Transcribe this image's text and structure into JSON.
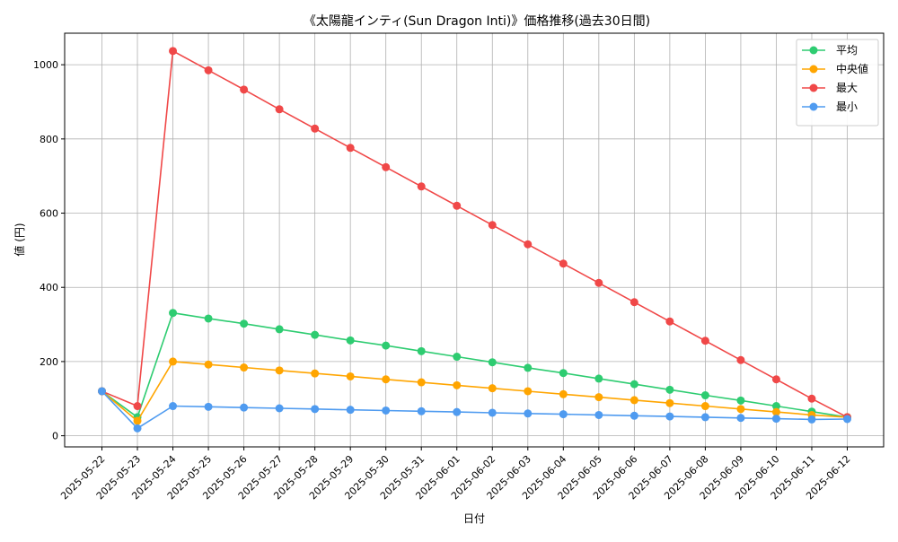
{
  "chart_data": {
    "type": "line",
    "title": "《太陽龍インティ(Sun Dragon Inti)》価格推移(過去30日間)",
    "xlabel": "日付",
    "ylabel": "値 (円)",
    "ylim": [
      -30,
      1085
    ],
    "yticks": [
      0,
      200,
      400,
      600,
      800,
      1000
    ],
    "grid": true,
    "legend_position": "top-right",
    "categories": [
      "2025-05-22",
      "2025-05-23",
      "2025-05-24",
      "2025-05-25",
      "2025-05-26",
      "2025-05-27",
      "2025-05-28",
      "2025-05-29",
      "2025-05-30",
      "2025-05-31",
      "2025-06-01",
      "2025-06-02",
      "2025-06-03",
      "2025-06-04",
      "2025-06-05",
      "2025-06-06",
      "2025-06-07",
      "2025-06-08",
      "2025-06-09",
      "2025-06-10",
      "2025-06-11",
      "2025-06-12"
    ],
    "series": [
      {
        "name": "平均",
        "color": "#2ecc71",
        "values": [
          120,
          50,
          331,
          316,
          302,
          287,
          272,
          257,
          243,
          228,
          213,
          198,
          183,
          169,
          154,
          139,
          124,
          109,
          95,
          80,
          65,
          50
        ]
      },
      {
        "name": "中央値",
        "color": "#ffa500",
        "values": [
          120,
          40,
          200,
          192,
          184,
          176,
          168,
          160,
          152,
          144,
          136,
          128,
          120,
          112,
          104,
          96,
          88,
          80,
          72,
          64,
          56,
          50
        ]
      },
      {
        "name": "最大",
        "color": "#f04848",
        "values": [
          120,
          80,
          1037,
          985,
          933,
          880,
          828,
          776,
          724,
          672,
          620,
          568,
          516,
          464,
          412,
          360,
          308,
          256,
          204,
          152,
          100,
          50
        ]
      },
      {
        "name": "最小",
        "color": "#4f9bf0",
        "values": [
          120,
          20,
          80,
          78,
          76,
          74,
          72,
          70,
          68,
          66,
          64,
          62,
          60,
          58,
          56,
          54,
          52,
          50,
          48,
          46,
          44,
          45
        ]
      }
    ]
  }
}
